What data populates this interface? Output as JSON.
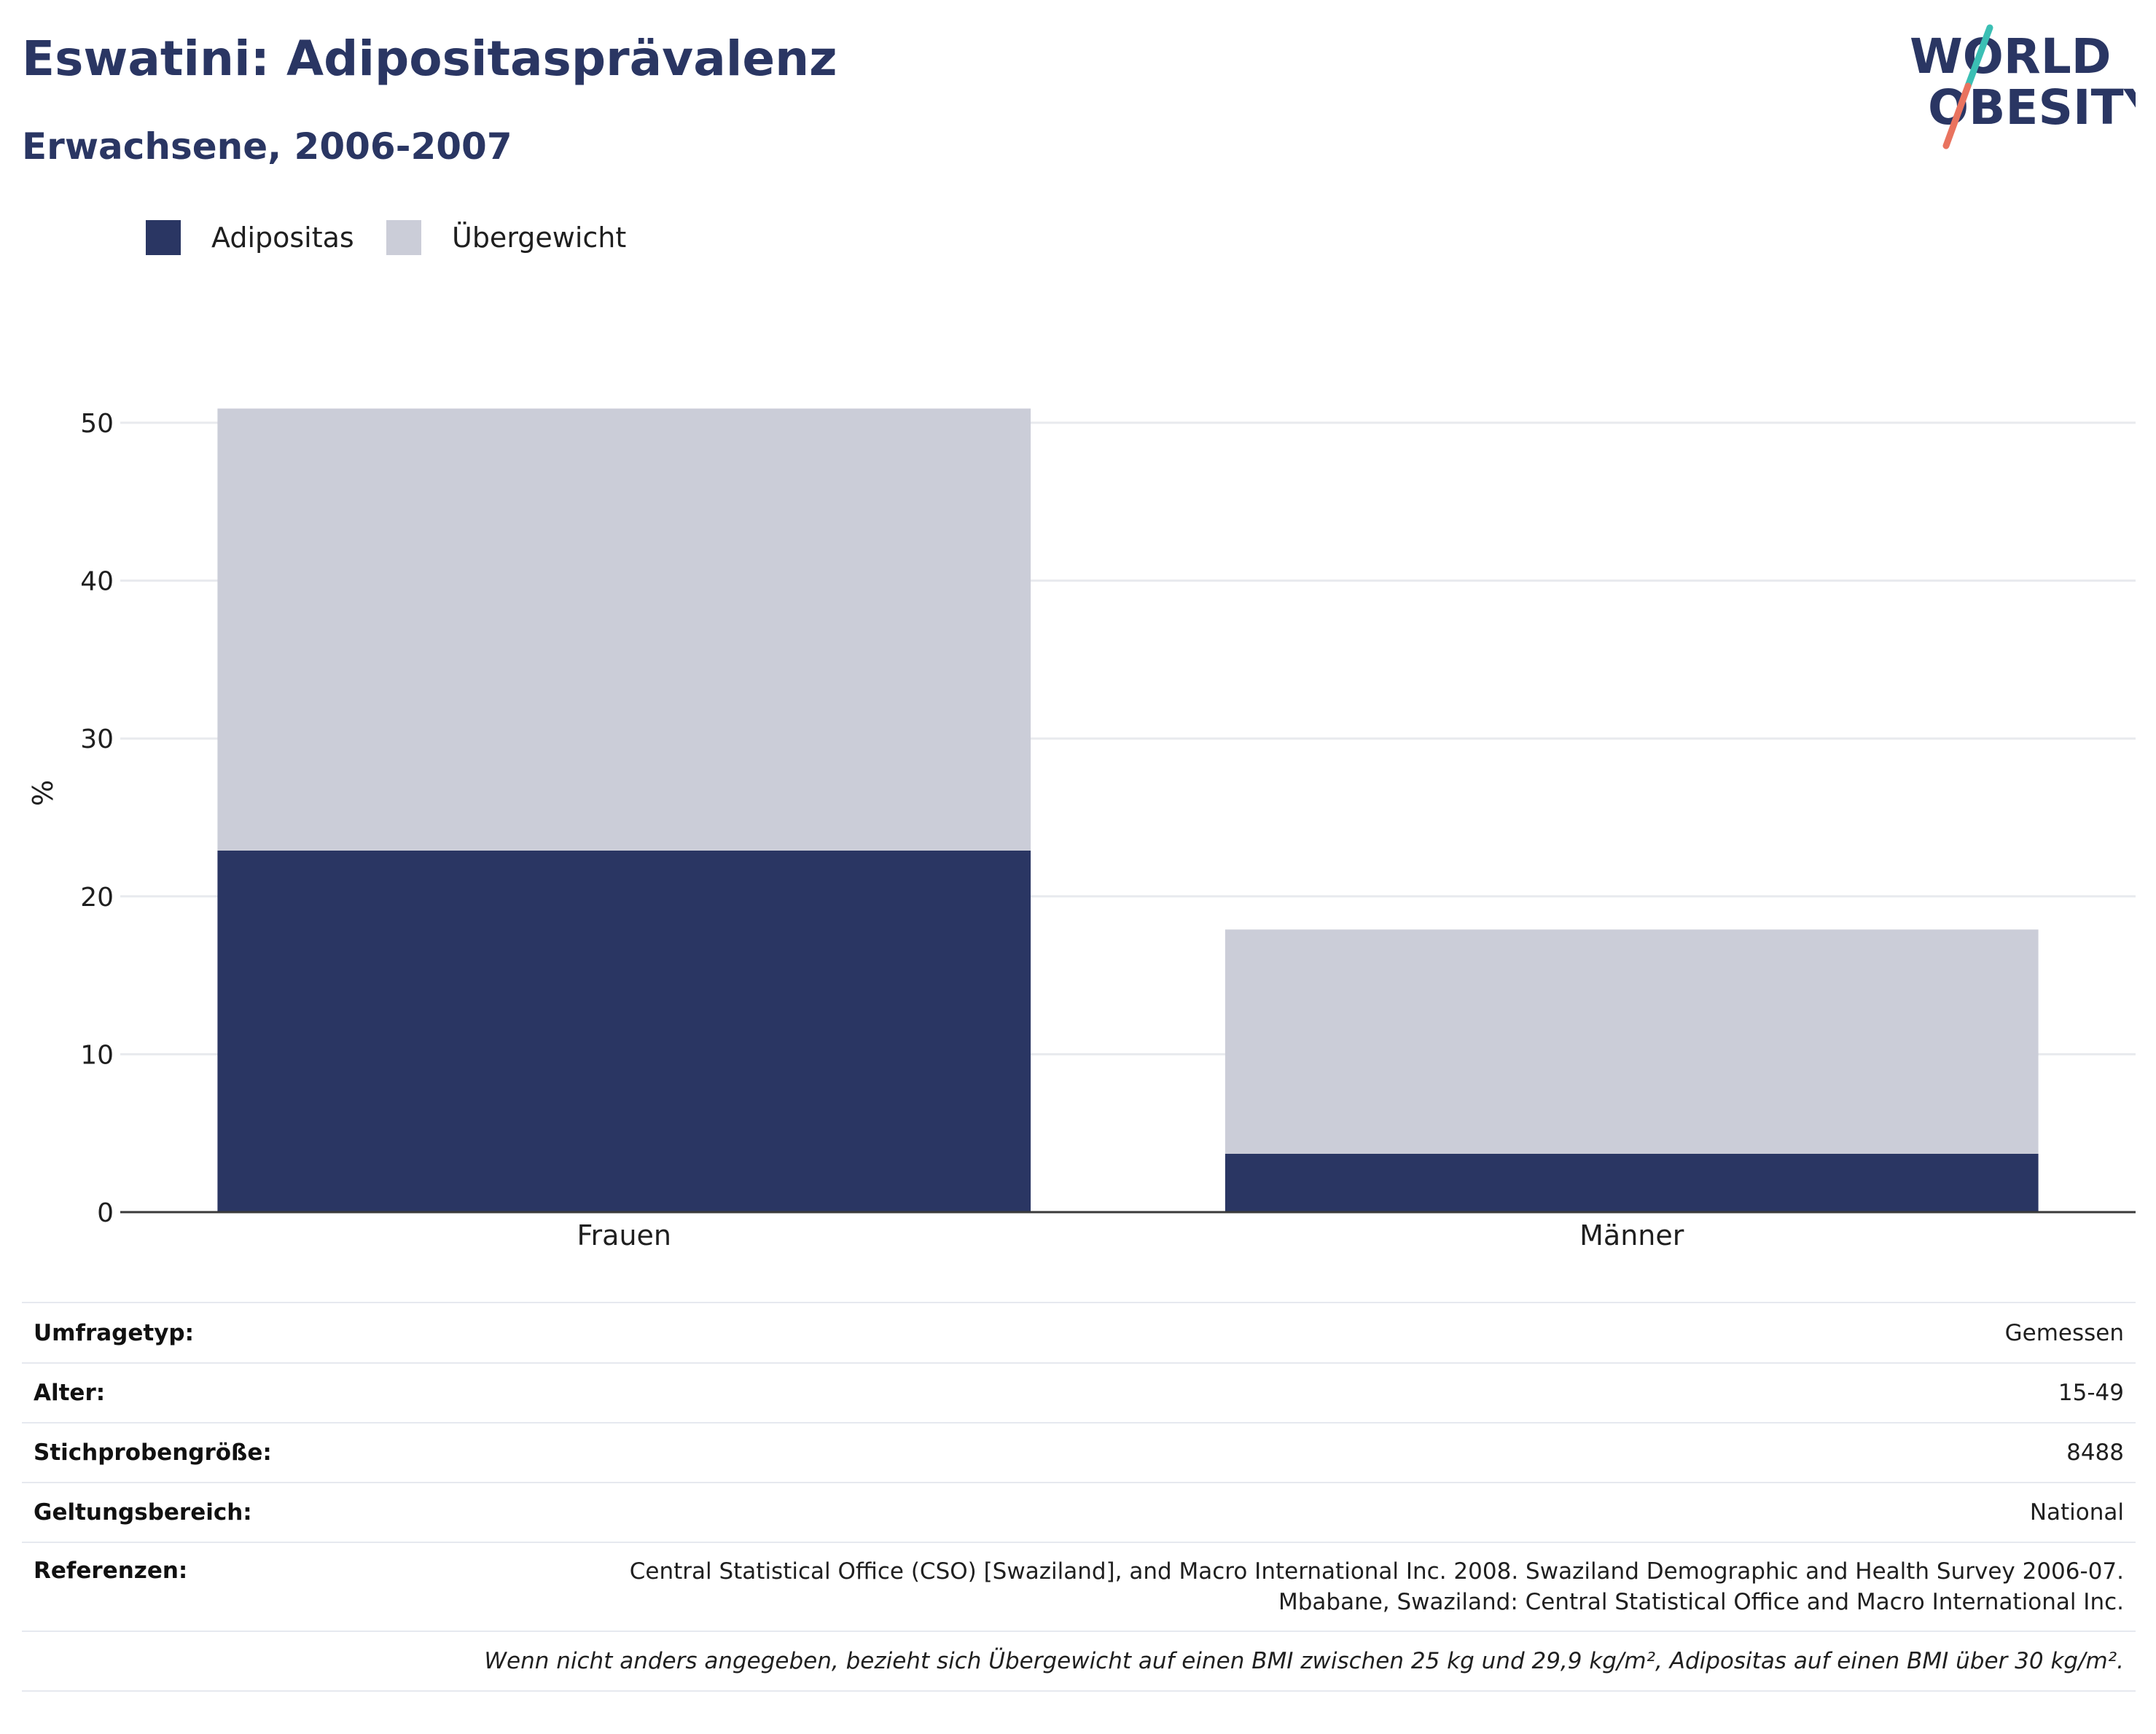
{
  "title": "Eswatini: Adipositasprävalenz",
  "subtitle": "Erwachsene, 2006-2007",
  "logo": {
    "line1": "WORLD",
    "line2": "OBESITY"
  },
  "legend": [
    {
      "label": "Adipositas",
      "color": "#2a3663"
    },
    {
      "label": "Übergewicht",
      "color": "#cbcdd8"
    }
  ],
  "chart_data": {
    "type": "bar",
    "stacked": true,
    "categories": [
      "Frauen",
      "Männer"
    ],
    "series": [
      {
        "name": "Adipositas",
        "values": [
          22.9,
          3.7
        ],
        "color": "#2a3663"
      },
      {
        "name": "Übergewicht",
        "values": [
          28.0,
          14.2
        ],
        "color": "#cbcdd8"
      }
    ],
    "ylabel": "%",
    "ylim": [
      0,
      50
    ],
    "yticks": [
      0,
      10,
      20,
      30,
      40,
      50
    ],
    "grid": true,
    "legend_position": "top-left"
  },
  "info": {
    "rows": [
      {
        "key": "Umfragetyp:",
        "value": "Gemessen"
      },
      {
        "key": "Alter:",
        "value": "15-49"
      },
      {
        "key": "Stichprobengröße:",
        "value": "8488"
      },
      {
        "key": "Geltungsbereich:",
        "value": "National"
      }
    ],
    "references_key": "Referenzen:",
    "references_line1": "Central Statistical Office (CSO) [Swaziland], and Macro International Inc. 2008. Swaziland Demographic and Health Survey 2006-07.",
    "references_line2": "Mbabane, Swaziland: Central Statistical Office and Macro International Inc.",
    "note": "Wenn nicht anders angegeben, bezieht sich Übergewicht auf einen BMI zwischen 25 kg und 29,9 kg/m², Adipositas auf einen BMI über 30 kg/m²."
  }
}
